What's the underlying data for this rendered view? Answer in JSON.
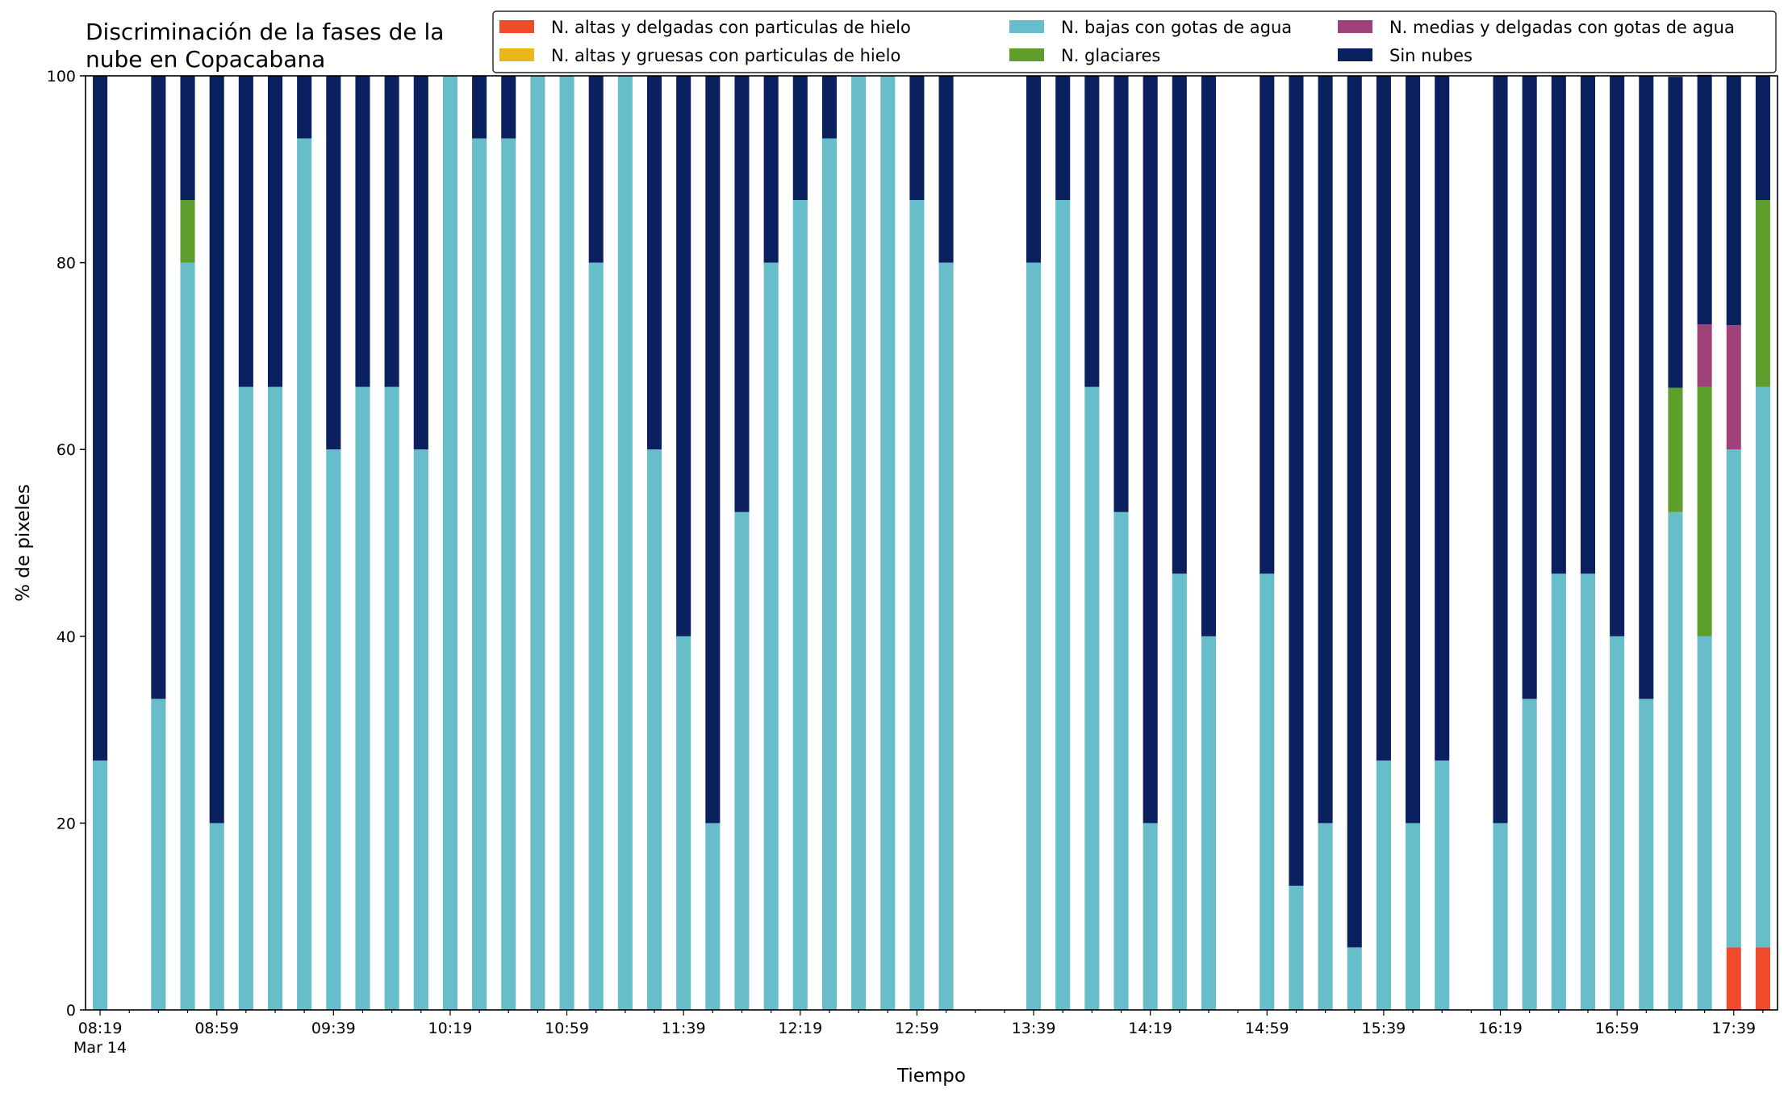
{
  "chart_data": {
    "type": "bar",
    "stacked": true,
    "title_lines": [
      "Discriminación de la fases de la",
      "nube en Copacabana"
    ],
    "xlabel": "Tiempo",
    "ylabel": "% de pixeles",
    "ylim": [
      0,
      100
    ],
    "yticks": [
      0,
      20,
      40,
      60,
      80,
      100
    ],
    "x_time_start": "08:19",
    "x_time_step_minutes": 10,
    "x_slot_count": 58,
    "x_date_label": "Mar 14",
    "x_tick_labels": [
      {
        "slot": 0,
        "label": "08:19"
      },
      {
        "slot": 4,
        "label": "08:59"
      },
      {
        "slot": 8,
        "label": "09:39"
      },
      {
        "slot": 12,
        "label": "10:19"
      },
      {
        "slot": 16,
        "label": "10:59"
      },
      {
        "slot": 20,
        "label": "11:39"
      },
      {
        "slot": 24,
        "label": "12:19"
      },
      {
        "slot": 28,
        "label": "12:59"
      },
      {
        "slot": 32,
        "label": "13:39"
      },
      {
        "slot": 36,
        "label": "14:19"
      },
      {
        "slot": 40,
        "label": "14:59"
      },
      {
        "slot": 44,
        "label": "15:39"
      },
      {
        "slot": 48,
        "label": "16:19"
      },
      {
        "slot": 52,
        "label": "16:59"
      },
      {
        "slot": 56,
        "label": "17:39"
      }
    ],
    "legend_position": "top-right",
    "legend_columns": 3,
    "series": [
      {
        "key": "alta_delgada_hielo",
        "name": "N. altas y delgadas con particulas de hielo",
        "color": "#EE4A2B"
      },
      {
        "key": "alta_gruesa_hielo",
        "name": "N. altas y gruesas con particulas de hielo",
        "color": "#E8B819"
      },
      {
        "key": "baja_agua",
        "name": "N. bajas con gotas de agua",
        "color": "#67BDCA"
      },
      {
        "key": "glaciares",
        "name": "N. glaciares",
        "color": "#5D9E2D"
      },
      {
        "key": "media_delgada_agua",
        "name": "N. medias y delgadas con gotas de agua",
        "color": "#A0427A"
      },
      {
        "key": "sin_nubes",
        "name": "Sin nubes",
        "color": "#0B205E"
      }
    ],
    "legend_order": [
      "alta_delgada_hielo",
      "alta_gruesa_hielo",
      "baja_agua",
      "glaciares",
      "media_delgada_agua",
      "sin_nubes"
    ],
    "stack_order": [
      "alta_delgada_hielo",
      "alta_gruesa_hielo",
      "baja_agua",
      "glaciares",
      "media_delgada_agua",
      "sin_nubes"
    ],
    "bars": [
      {
        "time": "08:19",
        "alta_delgada_hielo": 0,
        "alta_gruesa_hielo": 0,
        "baja_agua": 26.7,
        "glaciares": 0,
        "media_delgada_agua": 0,
        "sin_nubes": 73.3
      },
      {
        "time": "08:39",
        "alta_delgada_hielo": 0,
        "alta_gruesa_hielo": 0,
        "baja_agua": 33.3,
        "glaciares": 0,
        "media_delgada_agua": 0,
        "sin_nubes": 66.7
      },
      {
        "time": "08:49",
        "alta_delgada_hielo": 0,
        "alta_gruesa_hielo": 0,
        "baja_agua": 80,
        "glaciares": 6.7,
        "media_delgada_agua": 0,
        "sin_nubes": 13.3
      },
      {
        "time": "08:59",
        "alta_delgada_hielo": 0,
        "alta_gruesa_hielo": 0,
        "baja_agua": 20,
        "glaciares": 0,
        "media_delgada_agua": 0,
        "sin_nubes": 80
      },
      {
        "time": "09:09",
        "alta_delgada_hielo": 0,
        "alta_gruesa_hielo": 0,
        "baja_agua": 66.7,
        "glaciares": 0,
        "media_delgada_agua": 0,
        "sin_nubes": 33.3
      },
      {
        "time": "09:19",
        "alta_delgada_hielo": 0,
        "alta_gruesa_hielo": 0,
        "baja_agua": 66.7,
        "glaciares": 0,
        "media_delgada_agua": 0,
        "sin_nubes": 33.3
      },
      {
        "time": "09:29",
        "alta_delgada_hielo": 0,
        "alta_gruesa_hielo": 0,
        "baja_agua": 93.3,
        "glaciares": 0,
        "media_delgada_agua": 0,
        "sin_nubes": 6.7
      },
      {
        "time": "09:39",
        "alta_delgada_hielo": 0,
        "alta_gruesa_hielo": 0,
        "baja_agua": 60,
        "glaciares": 0,
        "media_delgada_agua": 0,
        "sin_nubes": 40
      },
      {
        "time": "09:49",
        "alta_delgada_hielo": 0,
        "alta_gruesa_hielo": 0,
        "baja_agua": 66.7,
        "glaciares": 0,
        "media_delgada_agua": 0,
        "sin_nubes": 33.3
      },
      {
        "time": "09:59",
        "alta_delgada_hielo": 0,
        "alta_gruesa_hielo": 0,
        "baja_agua": 66.7,
        "glaciares": 0,
        "media_delgada_agua": 0,
        "sin_nubes": 33.3
      },
      {
        "time": "10:09",
        "alta_delgada_hielo": 0,
        "alta_gruesa_hielo": 0,
        "baja_agua": 60,
        "glaciares": 0,
        "media_delgada_agua": 0,
        "sin_nubes": 40
      },
      {
        "time": "10:19",
        "alta_delgada_hielo": 0,
        "alta_gruesa_hielo": 0,
        "baja_agua": 100,
        "glaciares": 0,
        "media_delgada_agua": 0,
        "sin_nubes": 0
      },
      {
        "time": "10:29",
        "alta_delgada_hielo": 0,
        "alta_gruesa_hielo": 0,
        "baja_agua": 93.3,
        "glaciares": 0,
        "media_delgada_agua": 0,
        "sin_nubes": 6.7
      },
      {
        "time": "10:39",
        "alta_delgada_hielo": 0,
        "alta_gruesa_hielo": 0,
        "baja_agua": 93.3,
        "glaciares": 0,
        "media_delgada_agua": 0,
        "sin_nubes": 6.7
      },
      {
        "time": "10:49",
        "alta_delgada_hielo": 0,
        "alta_gruesa_hielo": 0,
        "baja_agua": 100,
        "glaciares": 0,
        "media_delgada_agua": 0,
        "sin_nubes": 0
      },
      {
        "time": "10:59",
        "alta_delgada_hielo": 0,
        "alta_gruesa_hielo": 0,
        "baja_agua": 100,
        "glaciares": 0,
        "media_delgada_agua": 0,
        "sin_nubes": 0
      },
      {
        "time": "11:09",
        "alta_delgada_hielo": 0,
        "alta_gruesa_hielo": 0,
        "baja_agua": 80,
        "glaciares": 0,
        "media_delgada_agua": 0,
        "sin_nubes": 20
      },
      {
        "time": "11:19",
        "alta_delgada_hielo": 0,
        "alta_gruesa_hielo": 0,
        "baja_agua": 100,
        "glaciares": 0,
        "media_delgada_agua": 0,
        "sin_nubes": 0
      },
      {
        "time": "11:29",
        "alta_delgada_hielo": 0,
        "alta_gruesa_hielo": 0,
        "baja_agua": 60,
        "glaciares": 0,
        "media_delgada_agua": 0,
        "sin_nubes": 40
      },
      {
        "time": "11:39",
        "alta_delgada_hielo": 0,
        "alta_gruesa_hielo": 0,
        "baja_agua": 40,
        "glaciares": 0,
        "media_delgada_agua": 0,
        "sin_nubes": 60
      },
      {
        "time": "11:49",
        "alta_delgada_hielo": 0,
        "alta_gruesa_hielo": 0,
        "baja_agua": 20,
        "glaciares": 0,
        "media_delgada_agua": 0,
        "sin_nubes": 80
      },
      {
        "time": "11:59",
        "alta_delgada_hielo": 0,
        "alta_gruesa_hielo": 0,
        "baja_agua": 53.3,
        "glaciares": 0,
        "media_delgada_agua": 0,
        "sin_nubes": 46.7
      },
      {
        "time": "12:09",
        "alta_delgada_hielo": 0,
        "alta_gruesa_hielo": 0,
        "baja_agua": 80,
        "glaciares": 0,
        "media_delgada_agua": 0,
        "sin_nubes": 20
      },
      {
        "time": "12:19",
        "alta_delgada_hielo": 0,
        "alta_gruesa_hielo": 0,
        "baja_agua": 86.7,
        "glaciares": 0,
        "media_delgada_agua": 0,
        "sin_nubes": 13.3
      },
      {
        "time": "12:29",
        "alta_delgada_hielo": 0,
        "alta_gruesa_hielo": 0,
        "baja_agua": 93.3,
        "glaciares": 0,
        "media_delgada_agua": 0,
        "sin_nubes": 6.7
      },
      {
        "time": "12:39",
        "alta_delgada_hielo": 0,
        "alta_gruesa_hielo": 0,
        "baja_agua": 100,
        "glaciares": 0,
        "media_delgada_agua": 0,
        "sin_nubes": 0
      },
      {
        "time": "12:49",
        "alta_delgada_hielo": 0,
        "alta_gruesa_hielo": 0,
        "baja_agua": 100,
        "glaciares": 0,
        "media_delgada_agua": 0,
        "sin_nubes": 0
      },
      {
        "time": "12:59",
        "alta_delgada_hielo": 0,
        "alta_gruesa_hielo": 0,
        "baja_agua": 86.7,
        "glaciares": 0,
        "media_delgada_agua": 0,
        "sin_nubes": 13.3
      },
      {
        "time": "13:09",
        "alta_delgada_hielo": 0,
        "alta_gruesa_hielo": 0,
        "baja_agua": 80,
        "glaciares": 0,
        "media_delgada_agua": 0,
        "sin_nubes": 20
      },
      {
        "time": "13:39",
        "alta_delgada_hielo": 0,
        "alta_gruesa_hielo": 0,
        "baja_agua": 80,
        "glaciares": 0,
        "media_delgada_agua": 0,
        "sin_nubes": 20
      },
      {
        "time": "13:49",
        "alta_delgada_hielo": 0,
        "alta_gruesa_hielo": 0,
        "baja_agua": 86.7,
        "glaciares": 0,
        "media_delgada_agua": 0,
        "sin_nubes": 13.3
      },
      {
        "time": "13:59",
        "alta_delgada_hielo": 0,
        "alta_gruesa_hielo": 0,
        "baja_agua": 66.7,
        "glaciares": 0,
        "media_delgada_agua": 0,
        "sin_nubes": 33.3
      },
      {
        "time": "14:09",
        "alta_delgada_hielo": 0,
        "alta_gruesa_hielo": 0,
        "baja_agua": 53.3,
        "glaciares": 0,
        "media_delgada_agua": 0,
        "sin_nubes": 46.7
      },
      {
        "time": "14:19",
        "alta_delgada_hielo": 0,
        "alta_gruesa_hielo": 0,
        "baja_agua": 20,
        "glaciares": 0,
        "media_delgada_agua": 0,
        "sin_nubes": 80
      },
      {
        "time": "14:29",
        "alta_delgada_hielo": 0,
        "alta_gruesa_hielo": 0,
        "baja_agua": 46.7,
        "glaciares": 0,
        "media_delgada_agua": 0,
        "sin_nubes": 53.3
      },
      {
        "time": "14:39",
        "alta_delgada_hielo": 0,
        "alta_gruesa_hielo": 0,
        "baja_agua": 40,
        "glaciares": 0,
        "media_delgada_agua": 0,
        "sin_nubes": 60
      },
      {
        "time": "14:59",
        "alta_delgada_hielo": 0,
        "alta_gruesa_hielo": 0,
        "baja_agua": 46.7,
        "glaciares": 0,
        "media_delgada_agua": 0,
        "sin_nubes": 53.3
      },
      {
        "time": "15:09",
        "alta_delgada_hielo": 0,
        "alta_gruesa_hielo": 0,
        "baja_agua": 13.3,
        "glaciares": 0,
        "media_delgada_agua": 0,
        "sin_nubes": 86.7
      },
      {
        "time": "15:19",
        "alta_delgada_hielo": 0,
        "alta_gruesa_hielo": 0,
        "baja_agua": 20,
        "glaciares": 0,
        "media_delgada_agua": 0,
        "sin_nubes": 80
      },
      {
        "time": "15:29",
        "alta_delgada_hielo": 0,
        "alta_gruesa_hielo": 0,
        "baja_agua": 6.7,
        "glaciares": 0,
        "media_delgada_agua": 0,
        "sin_nubes": 93.3
      },
      {
        "time": "15:39",
        "alta_delgada_hielo": 0,
        "alta_gruesa_hielo": 0,
        "baja_agua": 26.7,
        "glaciares": 0,
        "media_delgada_agua": 0,
        "sin_nubes": 73.3
      },
      {
        "time": "15:49",
        "alta_delgada_hielo": 0,
        "alta_gruesa_hielo": 0,
        "baja_agua": 20,
        "glaciares": 0,
        "media_delgada_agua": 0,
        "sin_nubes": 80
      },
      {
        "time": "15:59",
        "alta_delgada_hielo": 0,
        "alta_gruesa_hielo": 0,
        "baja_agua": 26.7,
        "glaciares": 0,
        "media_delgada_agua": 0,
        "sin_nubes": 73.3
      },
      {
        "time": "16:19",
        "alta_delgada_hielo": 0,
        "alta_gruesa_hielo": 0,
        "baja_agua": 20,
        "glaciares": 0,
        "media_delgada_agua": 0,
        "sin_nubes": 80
      },
      {
        "time": "16:29",
        "alta_delgada_hielo": 0,
        "alta_gruesa_hielo": 0,
        "baja_agua": 33.3,
        "glaciares": 0,
        "media_delgada_agua": 0,
        "sin_nubes": 66.7
      },
      {
        "time": "16:39",
        "alta_delgada_hielo": 0,
        "alta_gruesa_hielo": 0,
        "baja_agua": 46.7,
        "glaciares": 0,
        "media_delgada_agua": 0,
        "sin_nubes": 53.3
      },
      {
        "time": "16:49",
        "alta_delgada_hielo": 0,
        "alta_gruesa_hielo": 0,
        "baja_agua": 46.7,
        "glaciares": 0,
        "media_delgada_agua": 0,
        "sin_nubes": 53.3
      },
      {
        "time": "16:59",
        "alta_delgada_hielo": 0,
        "alta_gruesa_hielo": 0,
        "baja_agua": 40,
        "glaciares": 0,
        "media_delgada_agua": 0,
        "sin_nubes": 60
      },
      {
        "time": "17:09",
        "alta_delgada_hielo": 0,
        "alta_gruesa_hielo": 0,
        "baja_agua": 33.3,
        "glaciares": 0,
        "media_delgada_agua": 0,
        "sin_nubes": 66.7
      },
      {
        "time": "17:19",
        "alta_delgada_hielo": 0,
        "alta_gruesa_hielo": 0,
        "baja_agua": 53.3,
        "glaciares": 13.3,
        "media_delgada_agua": 0,
        "sin_nubes": 33.3
      },
      {
        "time": "17:29",
        "alta_delgada_hielo": 0,
        "alta_gruesa_hielo": 0,
        "baja_agua": 40,
        "glaciares": 26.7,
        "media_delgada_agua": 6.7,
        "sin_nubes": 26.7
      },
      {
        "time": "17:39",
        "alta_delgada_hielo": 6.7,
        "alta_gruesa_hielo": 0,
        "baja_agua": 53.3,
        "glaciares": 0,
        "media_delgada_agua": 13.3,
        "sin_nubes": 26.7
      },
      {
        "time": "17:49",
        "alta_delgada_hielo": 6.7,
        "alta_gruesa_hielo": 0,
        "baja_agua": 60,
        "glaciares": 20,
        "media_delgada_agua": 0,
        "sin_nubes": 13.3
      }
    ]
  }
}
